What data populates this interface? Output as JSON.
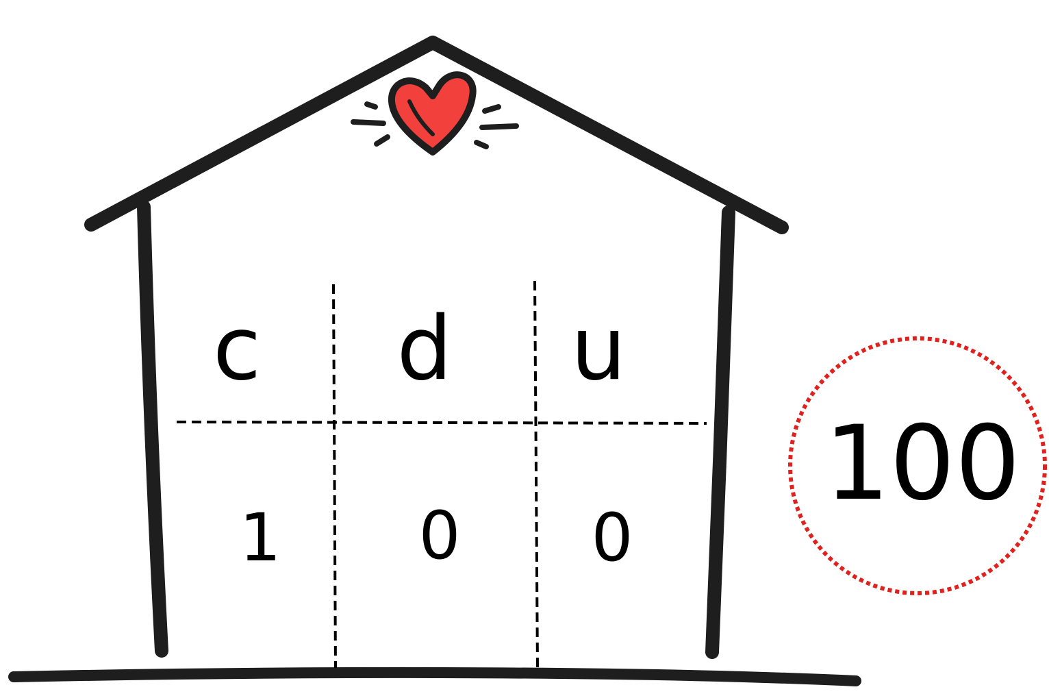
{
  "place_value_chart": {
    "headers": [
      "c",
      "d",
      "u"
    ],
    "digits": [
      "1",
      "0",
      "0"
    ]
  },
  "number_circle": {
    "value": "100"
  },
  "colors": {
    "outline": "#1e1e1e",
    "heart": "#f2413d",
    "circle": "#e0221f"
  }
}
